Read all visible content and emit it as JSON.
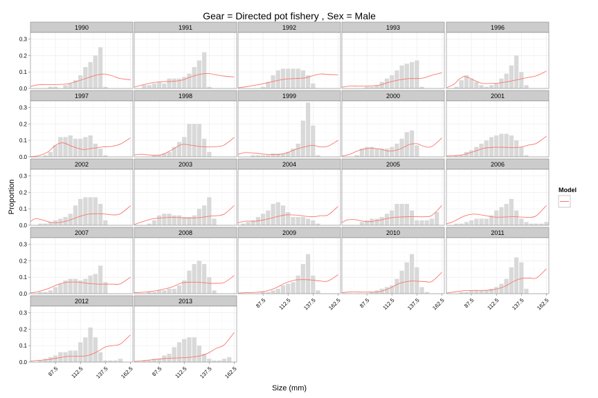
{
  "chart_data": {
    "type": "bar",
    "title": "Gear = Directed pot fishery , Sex = Male",
    "xlabel": "Size (mm)",
    "ylabel": "Proportion",
    "xlim": [
      62.5,
      165
    ],
    "ylim": [
      0,
      0.34
    ],
    "yticks": [
      0.0,
      0.1,
      0.2,
      0.3
    ],
    "ytick_labels": [
      "0.0",
      "0.1",
      "0.2",
      "0.3"
    ],
    "xticks": [
      87.5,
      112.5,
      137.5,
      162.5
    ],
    "xtick_labels": [
      "87.5",
      "112.5",
      "137.5",
      "162.5"
    ],
    "grid": true,
    "legend": {
      "title": "Model",
      "placement": "right",
      "entries": [
        {
          "label": "",
          "color": "#F8766D"
        }
      ]
    },
    "colors": {
      "bars": "#d9d9d9",
      "line": "#F8766D",
      "strip": "#cccccc",
      "panel_border": "#808080",
      "grid": "#ececec"
    },
    "size_bins": [
      62.5,
      67.5,
      72.5,
      77.5,
      82.5,
      87.5,
      92.5,
      97.5,
      102.5,
      107.5,
      112.5,
      117.5,
      122.5,
      127.5,
      132.5,
      137.5,
      142.5,
      147.5,
      152.5,
      157.5,
      162.5
    ],
    "panels": [
      {
        "year": "1990",
        "obs": [
          0,
          0,
          0,
          0,
          0.01,
          0.01,
          0,
          0.02,
          0.03,
          0.05,
          0.08,
          0.13,
          0.16,
          0.2,
          0.25,
          0.01,
          0,
          0,
          0,
          0,
          0
        ],
        "model_x": [
          62.5,
          70,
          80,
          90,
          100,
          110,
          120,
          130,
          137.5,
          145,
          152.5,
          162.5
        ],
        "model_y": [
          0.012,
          0.022,
          0.023,
          0.024,
          0.028,
          0.045,
          0.065,
          0.083,
          0.087,
          0.075,
          0.06,
          0.053
        ]
      },
      {
        "year": "1991",
        "obs": [
          0,
          0,
          0.02,
          0.02,
          0.03,
          0.04,
          0.03,
          0.06,
          0.06,
          0.06,
          0.07,
          0.09,
          0.13,
          0.17,
          0.22,
          0.01,
          0,
          0,
          0,
          0,
          0
        ],
        "model_x": [
          62.5,
          70,
          80,
          90,
          100,
          110,
          120,
          130,
          137.5,
          145,
          152.5,
          162.5
        ],
        "model_y": [
          0.008,
          0.02,
          0.034,
          0.041,
          0.043,
          0.05,
          0.072,
          0.088,
          0.09,
          0.082,
          0.075,
          0.07
        ]
      },
      {
        "year": "1992",
        "obs": [
          0,
          0,
          0,
          0,
          0,
          0.01,
          0.04,
          0.08,
          0.11,
          0.12,
          0.12,
          0.12,
          0.12,
          0.11,
          0.08,
          0.03,
          0,
          0,
          0,
          0,
          0
        ],
        "model_x": [
          62.5,
          70,
          80,
          90,
          100,
          110,
          120,
          130,
          137.5,
          145,
          152.5,
          162.5
        ],
        "model_y": [
          0.004,
          0.01,
          0.02,
          0.032,
          0.046,
          0.057,
          0.06,
          0.065,
          0.078,
          0.088,
          0.085,
          0.083
        ]
      },
      {
        "year": "1993",
        "obs": [
          0,
          0,
          0,
          0,
          0,
          0.01,
          0.01,
          0.02,
          0.04,
          0.06,
          0.08,
          0.11,
          0.14,
          0.15,
          0.16,
          0.17,
          0.01,
          0,
          0,
          0,
          0
        ],
        "model_x": [
          62.5,
          70,
          80,
          90,
          100,
          110,
          120,
          130,
          137.5,
          145,
          152.5,
          162.5
        ],
        "model_y": [
          0.008,
          0.014,
          0.014,
          0.015,
          0.02,
          0.038,
          0.052,
          0.06,
          0.06,
          0.065,
          0.08,
          0.095
        ]
      },
      {
        "year": "1996",
        "obs": [
          0,
          0,
          0.01,
          0.05,
          0.08,
          0.06,
          0.04,
          0.02,
          0.01,
          0.02,
          0.03,
          0.06,
          0.09,
          0.14,
          0.2,
          0.1,
          0.02,
          0,
          0,
          0,
          0
        ],
        "model_x": [
          62.5,
          70,
          75,
          80,
          85,
          90,
          97.5,
          105,
          115,
          125,
          135,
          145,
          152.5,
          162.5
        ],
        "model_y": [
          0.004,
          0.025,
          0.055,
          0.072,
          0.065,
          0.05,
          0.032,
          0.03,
          0.033,
          0.042,
          0.055,
          0.068,
          0.077,
          0.105
        ]
      },
      {
        "year": "1997",
        "obs": [
          0,
          0,
          0,
          0.01,
          0.03,
          0.07,
          0.12,
          0.12,
          0.13,
          0.11,
          0.11,
          0.12,
          0.13,
          0.08,
          0.05,
          0.01,
          0,
          0,
          0,
          0,
          0
        ],
        "model_x": [
          62.5,
          70,
          80,
          87.5,
          95,
          105,
          115,
          125,
          135,
          145,
          152.5,
          162.5
        ],
        "model_y": [
          0.002,
          0.006,
          0.03,
          0.07,
          0.085,
          0.062,
          0.045,
          0.052,
          0.06,
          0.065,
          0.078,
          0.115
        ]
      },
      {
        "year": "1998",
        "obs": [
          0,
          0,
          0,
          0,
          0.01,
          0.01,
          0.02,
          0.03,
          0.06,
          0.09,
          0.12,
          0.2,
          0.2,
          0.2,
          0.11,
          0.03,
          0,
          0,
          0,
          0,
          0
        ],
        "model_x": [
          62.5,
          70,
          80,
          90,
          100,
          110,
          120,
          130,
          137.5,
          145,
          152.5,
          162.5
        ],
        "model_y": [
          0.012,
          0.016,
          0.01,
          0.014,
          0.042,
          0.075,
          0.07,
          0.062,
          0.06,
          0.062,
          0.072,
          0.118
        ]
      },
      {
        "year": "1999",
        "obs": [
          0,
          0,
          0,
          0.01,
          0.01,
          0.01,
          0.01,
          0.02,
          0.02,
          0.02,
          0.03,
          0.05,
          0.08,
          0.22,
          0.33,
          0.19,
          0.01,
          0,
          0,
          0,
          0
        ],
        "model_x": [
          62.5,
          70,
          80,
          90,
          100,
          110,
          120,
          130,
          137.5,
          145,
          152.5,
          162.5
        ],
        "model_y": [
          0.016,
          0.026,
          0.022,
          0.016,
          0.014,
          0.022,
          0.045,
          0.062,
          0.07,
          0.06,
          0.065,
          0.1
        ]
      },
      {
        "year": "2000",
        "obs": [
          0,
          0,
          0,
          0.01,
          0.05,
          0.06,
          0.06,
          0.05,
          0.05,
          0.05,
          0.06,
          0.08,
          0.11,
          0.15,
          0.16,
          0.07,
          0,
          0,
          0,
          0,
          0
        ],
        "model_x": [
          62.5,
          70,
          80,
          90,
          100,
          110,
          120,
          130,
          137.5,
          145,
          152.5,
          162.5
        ],
        "model_y": [
          0.004,
          0.015,
          0.04,
          0.052,
          0.048,
          0.035,
          0.046,
          0.075,
          0.08,
          0.063,
          0.063,
          0.115
        ]
      },
      {
        "year": "2001",
        "obs": [
          0,
          0,
          0.01,
          0.01,
          0.03,
          0.04,
          0.06,
          0.08,
          0.1,
          0.12,
          0.13,
          0.14,
          0.14,
          0.13,
          0.1,
          0.06,
          0.01,
          0,
          0,
          0,
          0
        ],
        "model_x": [
          62.5,
          70,
          80,
          90,
          100,
          110,
          120,
          130,
          137.5,
          145,
          152.5,
          162.5
        ],
        "model_y": [
          0.005,
          0.007,
          0.014,
          0.032,
          0.052,
          0.058,
          0.058,
          0.056,
          0.06,
          0.072,
          0.082,
          0.125
        ]
      },
      {
        "year": "2002",
        "obs": [
          0,
          0,
          0.01,
          0.01,
          0.02,
          0.03,
          0.04,
          0.05,
          0.07,
          0.12,
          0.16,
          0.17,
          0.17,
          0.17,
          0.13,
          0.03,
          0,
          0,
          0,
          0,
          0
        ],
        "model_x": [
          62.5,
          67.5,
          75,
          82.5,
          90,
          100,
          110,
          120,
          130,
          137.5,
          145,
          152.5,
          162.5
        ],
        "model_y": [
          0.022,
          0.04,
          0.032,
          0.018,
          0.016,
          0.028,
          0.05,
          0.067,
          0.07,
          0.068,
          0.063,
          0.07,
          0.118
        ]
      },
      {
        "year": "2003",
        "obs": [
          0,
          0,
          0,
          0.01,
          0.03,
          0.06,
          0.07,
          0.07,
          0.06,
          0.06,
          0.05,
          0.05,
          0.06,
          0.1,
          0.12,
          0.17,
          0.04,
          0,
          0,
          0,
          0
        ],
        "model_x": [
          62.5,
          70,
          80,
          90,
          100,
          110,
          120,
          130,
          137.5,
          145,
          152.5,
          162.5
        ],
        "model_y": [
          0.004,
          0.02,
          0.038,
          0.045,
          0.048,
          0.046,
          0.044,
          0.048,
          0.055,
          0.058,
          0.068,
          0.12
        ]
      },
      {
        "year": "2004",
        "obs": [
          0,
          0.01,
          0.02,
          0.03,
          0.05,
          0.07,
          0.09,
          0.13,
          0.14,
          0.12,
          0.08,
          0.05,
          0.05,
          0.05,
          0.04,
          0.03,
          0.01,
          0,
          0,
          0,
          0
        ],
        "model_x": [
          62.5,
          70,
          80,
          90,
          100,
          110,
          120,
          130,
          137.5,
          145,
          152.5,
          162.5
        ],
        "model_y": [
          0.015,
          0.025,
          0.025,
          0.035,
          0.05,
          0.063,
          0.062,
          0.055,
          0.052,
          0.058,
          0.063,
          0.115
        ]
      },
      {
        "year": "2005",
        "obs": [
          0,
          0,
          0,
          0,
          0.02,
          0.03,
          0.04,
          0.04,
          0.05,
          0.07,
          0.09,
          0.13,
          0.13,
          0.13,
          0.09,
          0.03,
          0.03,
          0.03,
          0.04,
          0.08,
          0
        ],
        "model_x": [
          62.5,
          67.5,
          75,
          82.5,
          90,
          100,
          110,
          120,
          130,
          137.5,
          145,
          152.5,
          162.5
        ],
        "model_y": [
          0.016,
          0.032,
          0.035,
          0.026,
          0.022,
          0.03,
          0.044,
          0.05,
          0.052,
          0.052,
          0.052,
          0.06,
          0.12
        ]
      },
      {
        "year": "2006",
        "obs": [
          0,
          0,
          0.01,
          0.01,
          0.02,
          0.03,
          0.04,
          0.04,
          0.04,
          0.06,
          0.09,
          0.11,
          0.13,
          0.16,
          0.09,
          0.04,
          0.02,
          0.01,
          0.01,
          0.01,
          0.02
        ],
        "model_x": [
          62.5,
          70,
          80,
          90,
          100,
          110,
          120,
          130,
          137.5,
          145,
          152.5,
          162.5
        ],
        "model_y": [
          0.008,
          0.024,
          0.055,
          0.068,
          0.06,
          0.05,
          0.05,
          0.052,
          0.05,
          0.048,
          0.058,
          0.12
        ]
      },
      {
        "year": "2007",
        "obs": [
          0,
          0,
          0.01,
          0.01,
          0.02,
          0.04,
          0.06,
          0.08,
          0.09,
          0.09,
          0.08,
          0.09,
          0.11,
          0.12,
          0.17,
          0.07,
          0,
          0,
          0,
          0,
          0
        ],
        "model_x": [
          62.5,
          70,
          80,
          90,
          100,
          110,
          120,
          130,
          137.5,
          145,
          152.5,
          162.5
        ],
        "model_y": [
          0.005,
          0.012,
          0.03,
          0.056,
          0.07,
          0.07,
          0.062,
          0.058,
          0.058,
          0.058,
          0.06,
          0.1
        ]
      },
      {
        "year": "2008",
        "obs": [
          0,
          0,
          0,
          0.01,
          0.01,
          0.02,
          0.02,
          0.03,
          0.03,
          0.05,
          0.08,
          0.14,
          0.18,
          0.2,
          0.18,
          0.1,
          0.02,
          0,
          0,
          0,
          0
        ],
        "model_x": [
          62.5,
          70,
          80,
          90,
          100,
          110,
          120,
          130,
          137.5,
          145,
          152.5,
          162.5
        ],
        "model_y": [
          0.006,
          0.008,
          0.014,
          0.025,
          0.04,
          0.065,
          0.07,
          0.068,
          0.063,
          0.063,
          0.068,
          0.11
        ]
      },
      {
        "year": "2009",
        "obs": [
          0,
          0,
          0,
          0,
          0,
          0.01,
          0.01,
          0.02,
          0.03,
          0.05,
          0.06,
          0.07,
          0.11,
          0.18,
          0.24,
          0.11,
          0.02,
          0,
          0,
          0,
          0
        ],
        "model_x": [
          62.5,
          70,
          80,
          90,
          100,
          110,
          120,
          130,
          137.5,
          145,
          152.5,
          162.5
        ],
        "model_y": [
          0.004,
          0.006,
          0.008,
          0.015,
          0.035,
          0.065,
          0.083,
          0.085,
          0.082,
          0.077,
          0.077,
          0.115
        ]
      },
      {
        "year": "2010",
        "obs": [
          0,
          0,
          0,
          0,
          0,
          0,
          0.01,
          0.02,
          0.03,
          0.04,
          0.05,
          0.09,
          0.14,
          0.19,
          0.24,
          0.16,
          0.04,
          0.01,
          0,
          0,
          0
        ],
        "model_x": [
          62.5,
          70,
          80,
          90,
          100,
          110,
          120,
          130,
          137.5,
          145,
          152.5,
          162.5
        ],
        "model_y": [
          0.006,
          0.01,
          0.01,
          0.01,
          0.012,
          0.032,
          0.062,
          0.076,
          0.076,
          0.074,
          0.074,
          0.13
        ]
      },
      {
        "year": "2011",
        "obs": [
          0,
          0,
          0,
          0.01,
          0.01,
          0.02,
          0.02,
          0.02,
          0.02,
          0.03,
          0.04,
          0.06,
          0.09,
          0.16,
          0.22,
          0.19,
          0.03,
          0,
          0,
          0,
          0
        ],
        "model_x": [
          62.5,
          70,
          80,
          90,
          100,
          110,
          120,
          130,
          137.5,
          145,
          152.5,
          162.5
        ],
        "model_y": [
          0.004,
          0.01,
          0.018,
          0.02,
          0.02,
          0.025,
          0.042,
          0.075,
          0.092,
          0.095,
          0.095,
          0.15
        ]
      },
      {
        "year": "2012",
        "obs": [
          0,
          0,
          0.01,
          0.02,
          0.03,
          0.04,
          0.06,
          0.06,
          0.07,
          0.07,
          0.12,
          0.15,
          0.21,
          0.15,
          0.06,
          0.01,
          0.01,
          0.01,
          0.02,
          0,
          0
        ],
        "model_x": [
          62.5,
          70,
          80,
          90,
          100,
          110,
          120,
          130,
          137.5,
          145,
          152.5,
          162.5
        ],
        "model_y": [
          0.006,
          0.01,
          0.015,
          0.025,
          0.035,
          0.035,
          0.04,
          0.065,
          0.092,
          0.1,
          0.11,
          0.165
        ]
      },
      {
        "year": "2013",
        "obs": [
          0,
          0,
          0.01,
          0.01,
          0.02,
          0.02,
          0.04,
          0.05,
          0.09,
          0.12,
          0.14,
          0.15,
          0.15,
          0.1,
          0.05,
          0.02,
          0.01,
          0.01,
          0.02,
          0.03,
          0
        ],
        "model_x": [
          62.5,
          70,
          80,
          90,
          100,
          110,
          120,
          130,
          137.5,
          145,
          152.5,
          162.5
        ],
        "model_y": [
          0.004,
          0.008,
          0.014,
          0.02,
          0.024,
          0.026,
          0.03,
          0.04,
          0.058,
          0.085,
          0.105,
          0.18
        ]
      }
    ]
  }
}
